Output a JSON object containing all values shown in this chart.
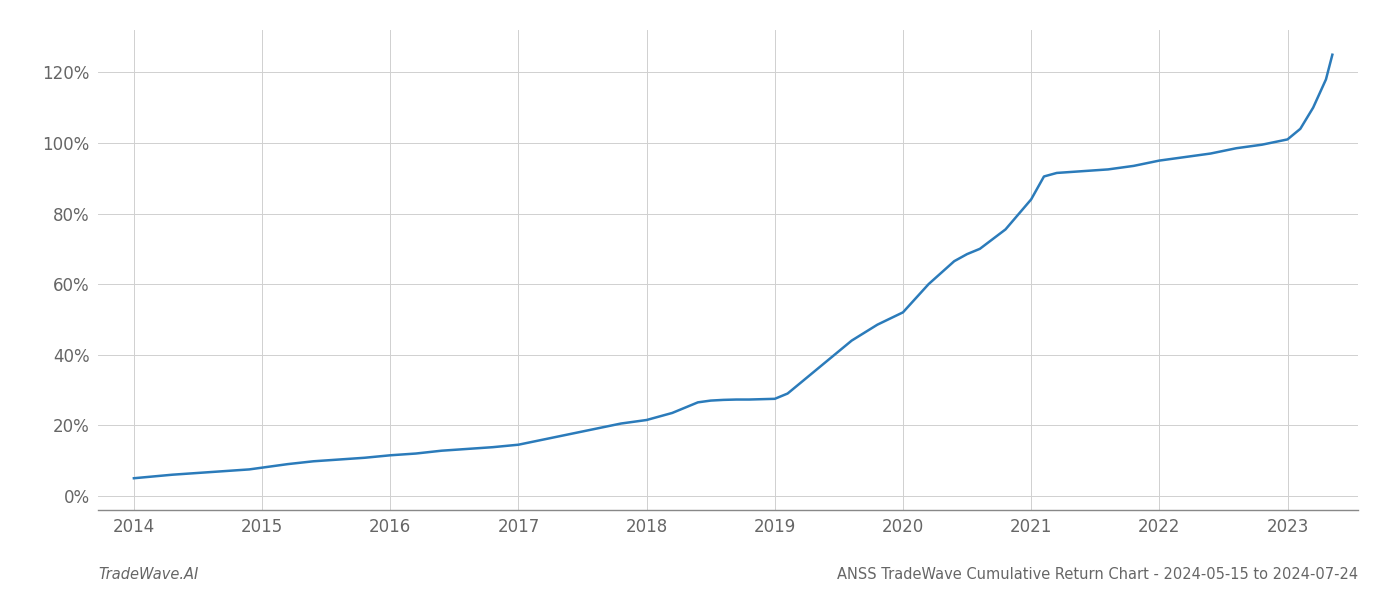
{
  "footer_left": "TradeWave.AI",
  "footer_right": "ANSS TradeWave Cumulative Return Chart - 2024-05-15 to 2024-07-24",
  "line_color": "#2b7bba",
  "line_width": 1.8,
  "background_color": "#ffffff",
  "grid_color": "#d0d0d0",
  "x_values": [
    2014.0,
    2014.15,
    2014.3,
    2014.5,
    2014.7,
    2014.9,
    2015.0,
    2015.2,
    2015.4,
    2015.6,
    2015.8,
    2016.0,
    2016.2,
    2016.4,
    2016.6,
    2016.8,
    2017.0,
    2017.2,
    2017.4,
    2017.6,
    2017.8,
    2018.0,
    2018.1,
    2018.2,
    2018.3,
    2018.4,
    2018.5,
    2018.6,
    2018.7,
    2018.8,
    2018.9,
    2019.0,
    2019.1,
    2019.2,
    2019.4,
    2019.6,
    2019.8,
    2020.0,
    2020.2,
    2020.4,
    2020.5,
    2020.6,
    2020.8,
    2021.0,
    2021.1,
    2021.2,
    2021.4,
    2021.6,
    2021.8,
    2022.0,
    2022.2,
    2022.4,
    2022.6,
    2022.8,
    2023.0,
    2023.1,
    2023.2,
    2023.3,
    2023.35
  ],
  "y_values": [
    5.0,
    5.5,
    6.0,
    6.5,
    7.0,
    7.5,
    8.0,
    9.0,
    9.8,
    10.3,
    10.8,
    11.5,
    12.0,
    12.8,
    13.3,
    13.8,
    14.5,
    16.0,
    17.5,
    19.0,
    20.5,
    21.5,
    22.5,
    23.5,
    25.0,
    26.5,
    27.0,
    27.2,
    27.3,
    27.3,
    27.4,
    27.5,
    29.0,
    32.0,
    38.0,
    44.0,
    48.5,
    52.0,
    60.0,
    66.5,
    68.5,
    70.0,
    75.5,
    84.0,
    90.5,
    91.5,
    92.0,
    92.5,
    93.5,
    95.0,
    96.0,
    97.0,
    98.5,
    99.5,
    101.0,
    104.0,
    110.0,
    118.0,
    125.0
  ],
  "yticks": [
    0,
    20,
    40,
    60,
    80,
    100,
    120
  ],
  "xticks": [
    2014,
    2015,
    2016,
    2017,
    2018,
    2019,
    2020,
    2021,
    2022,
    2023
  ],
  "ylim": [
    -4,
    132
  ],
  "xlim": [
    2013.72,
    2023.55
  ],
  "tick_label_color": "#666666",
  "tick_fontsize": 12,
  "footer_fontsize": 10.5
}
